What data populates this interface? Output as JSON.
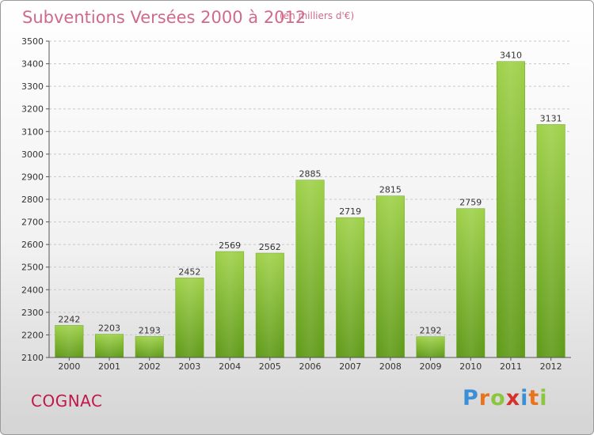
{
  "header": {
    "title": "Subventions Versées 2000 à 2012",
    "subtitle": "(en milliers d'€)"
  },
  "footer": {
    "city": "COGNAC",
    "logo_letters": [
      "P",
      "r",
      "o",
      "x",
      "i",
      "t",
      "i"
    ],
    "logo_colors": [
      "#3b8fd6",
      "#e8731c",
      "#8cc63f",
      "#d6302e",
      "#3b8fd6",
      "#e8731c",
      "#8cc63f"
    ]
  },
  "chart_data": {
    "type": "bar",
    "title": "Subventions Versées 2000 à 2012",
    "subtitle": "(en milliers d'€)",
    "categories": [
      "2000",
      "2001",
      "2002",
      "2003",
      "2004",
      "2005",
      "2006",
      "2007",
      "2008",
      "2009",
      "2010",
      "2011",
      "2012"
    ],
    "values": [
      2242,
      2203,
      2193,
      2452,
      2569,
      2562,
      2885,
      2719,
      2815,
      2192,
      2759,
      3410,
      3131
    ],
    "ylim": [
      2100,
      3500
    ],
    "yticks": [
      2100,
      2200,
      2300,
      2400,
      2500,
      2600,
      2700,
      2800,
      2900,
      3000,
      3100,
      3200,
      3300,
      3400,
      3500
    ],
    "grid": true,
    "bar_color": "#7cb82a",
    "xlabel": "",
    "ylabel": ""
  }
}
